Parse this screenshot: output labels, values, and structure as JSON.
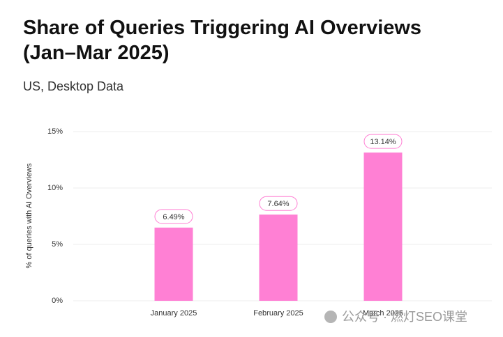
{
  "chart_data": {
    "type": "bar",
    "title": "Share of Queries Triggering AI Overviews (Jan–Mar 2025)",
    "subtitle": "US, Desktop Data",
    "y_label": "% of queries with AI Overviews",
    "categories": [
      "January 2025",
      "February 2025",
      "March 2025"
    ],
    "values": [
      6.49,
      7.64,
      13.14
    ],
    "value_labels": [
      "6.49%",
      "7.64%",
      "13.14%"
    ],
    "color": "#ff80d4",
    "ylim": [
      0,
      15
    ],
    "yticks": [
      {
        "value": 0,
        "label": "0%"
      },
      {
        "value": 5,
        "label": "5%"
      },
      {
        "value": 10,
        "label": "10%"
      },
      {
        "value": 15,
        "label": "15%"
      }
    ],
    "grid": true
  },
  "watermark": "公众号 · 燃灯SEO课堂"
}
